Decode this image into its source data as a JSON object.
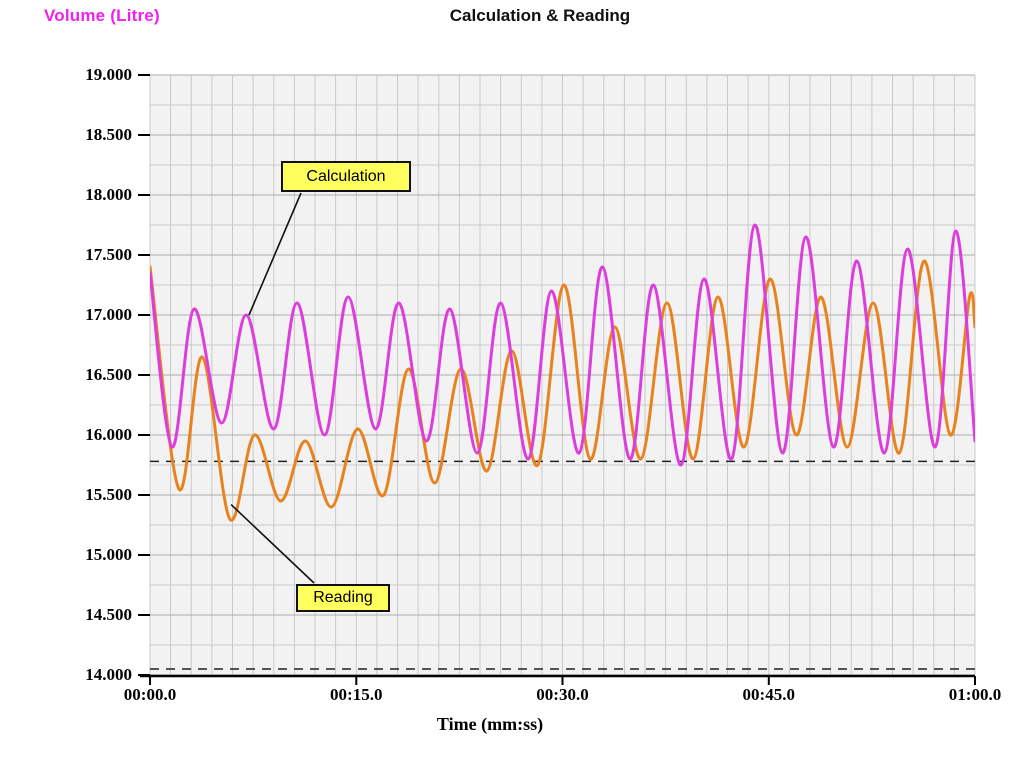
{
  "header": {
    "y_axis_title": "Volume (Litre)",
    "chart_title": "Calculation & Reading",
    "x_axis_title": "Time (mm:ss)"
  },
  "colors": {
    "background": "#ffffff",
    "plot_bg": "#f2f2f2",
    "grid_minor": "#c9c9c9",
    "grid_major": "#aeaeae",
    "axis": "#000000",
    "dashed_guide": "#222222",
    "y_axis_title": "#ee22ee",
    "calculation_line": "#dd3ddd",
    "reading_line": "#e8821e",
    "callout_bg": "#ffff5e"
  },
  "chart_data": {
    "type": "line",
    "title": "Calculation & Reading",
    "xlabel": "Time (mm:ss)",
    "ylabel": "Volume (Litre)",
    "x_unit": "seconds",
    "xlim": [
      0,
      60
    ],
    "ylim": [
      14,
      19
    ],
    "x_ticks": [
      0,
      15,
      30,
      45,
      60
    ],
    "x_tick_labels": [
      "00:00.0",
      "00:15.0",
      "00:30.0",
      "00:45.0",
      "01:00.0"
    ],
    "y_ticks": [
      19,
      18.5,
      18,
      17.5,
      17,
      16.5,
      16,
      15.5,
      15,
      14.5,
      14
    ],
    "y_tick_labels": [
      "19.000",
      "18.500",
      "18.000",
      "17.500",
      "17.000",
      "16.500",
      "16.000",
      "15.500",
      "15.000",
      "14.500",
      "14.000"
    ],
    "grid": {
      "on": true,
      "x_step": 1.5,
      "y_step": 0.25
    },
    "dashed_guides": [
      15.78,
      14.05
    ],
    "legend_position": "callouts-on-plot",
    "series": [
      {
        "name": "Calculation",
        "color": "#dd3ddd",
        "points": [
          [
            0,
            17.35
          ],
          [
            1.6,
            15.9
          ],
          [
            3.2,
            17.05
          ],
          [
            5.2,
            16.1
          ],
          [
            7,
            17.0
          ],
          [
            9,
            16.05
          ],
          [
            10.7,
            17.1
          ],
          [
            12.7,
            16.0
          ],
          [
            14.4,
            17.15
          ],
          [
            16.4,
            16.05
          ],
          [
            18.1,
            17.1
          ],
          [
            20.1,
            15.95
          ],
          [
            21.8,
            17.05
          ],
          [
            23.8,
            15.85
          ],
          [
            25.5,
            17.1
          ],
          [
            27.5,
            15.8
          ],
          [
            29.2,
            17.2
          ],
          [
            31.2,
            15.85
          ],
          [
            32.9,
            17.4
          ],
          [
            34.9,
            15.8
          ],
          [
            36.6,
            17.25
          ],
          [
            38.6,
            15.75
          ],
          [
            40.3,
            17.3
          ],
          [
            42.3,
            15.8
          ],
          [
            44,
            17.75
          ],
          [
            46,
            15.85
          ],
          [
            47.7,
            17.65
          ],
          [
            49.7,
            15.9
          ],
          [
            51.4,
            17.45
          ],
          [
            53.4,
            15.85
          ],
          [
            55.1,
            17.55
          ],
          [
            57.1,
            15.9
          ],
          [
            58.6,
            17.7
          ],
          [
            60,
            15.95
          ]
        ]
      },
      {
        "name": "Reading",
        "color": "#e8821e",
        "points": [
          [
            0,
            17.4
          ],
          [
            2.1,
            15.55
          ],
          [
            3.8,
            16.65
          ],
          [
            5.8,
            15.3
          ],
          [
            7.6,
            16.0
          ],
          [
            9.5,
            15.45
          ],
          [
            11.3,
            15.95
          ],
          [
            13.2,
            15.4
          ],
          [
            15.1,
            16.05
          ],
          [
            17,
            15.5
          ],
          [
            18.8,
            16.55
          ],
          [
            20.7,
            15.6
          ],
          [
            22.6,
            16.55
          ],
          [
            24.5,
            15.7
          ],
          [
            26.3,
            16.7
          ],
          [
            28.2,
            15.75
          ],
          [
            30.1,
            17.25
          ],
          [
            32,
            15.8
          ],
          [
            33.8,
            16.9
          ],
          [
            35.7,
            15.8
          ],
          [
            37.6,
            17.1
          ],
          [
            39.5,
            15.8
          ],
          [
            41.3,
            17.15
          ],
          [
            43.2,
            15.9
          ],
          [
            45.1,
            17.3
          ],
          [
            47,
            16.0
          ],
          [
            48.8,
            17.15
          ],
          [
            50.7,
            15.9
          ],
          [
            52.6,
            17.1
          ],
          [
            54.5,
            15.85
          ],
          [
            56.3,
            17.45
          ],
          [
            58.2,
            16.0
          ],
          [
            59.6,
            17.15
          ],
          [
            60,
            16.9
          ]
        ]
      }
    ],
    "annotations": [
      {
        "label": "Calculation",
        "series": "Calculation",
        "target_x": 7.2,
        "target_y": 17.0
      },
      {
        "label": "Reading",
        "series": "Reading",
        "target_x": 5.9,
        "target_y": 15.42
      }
    ]
  }
}
